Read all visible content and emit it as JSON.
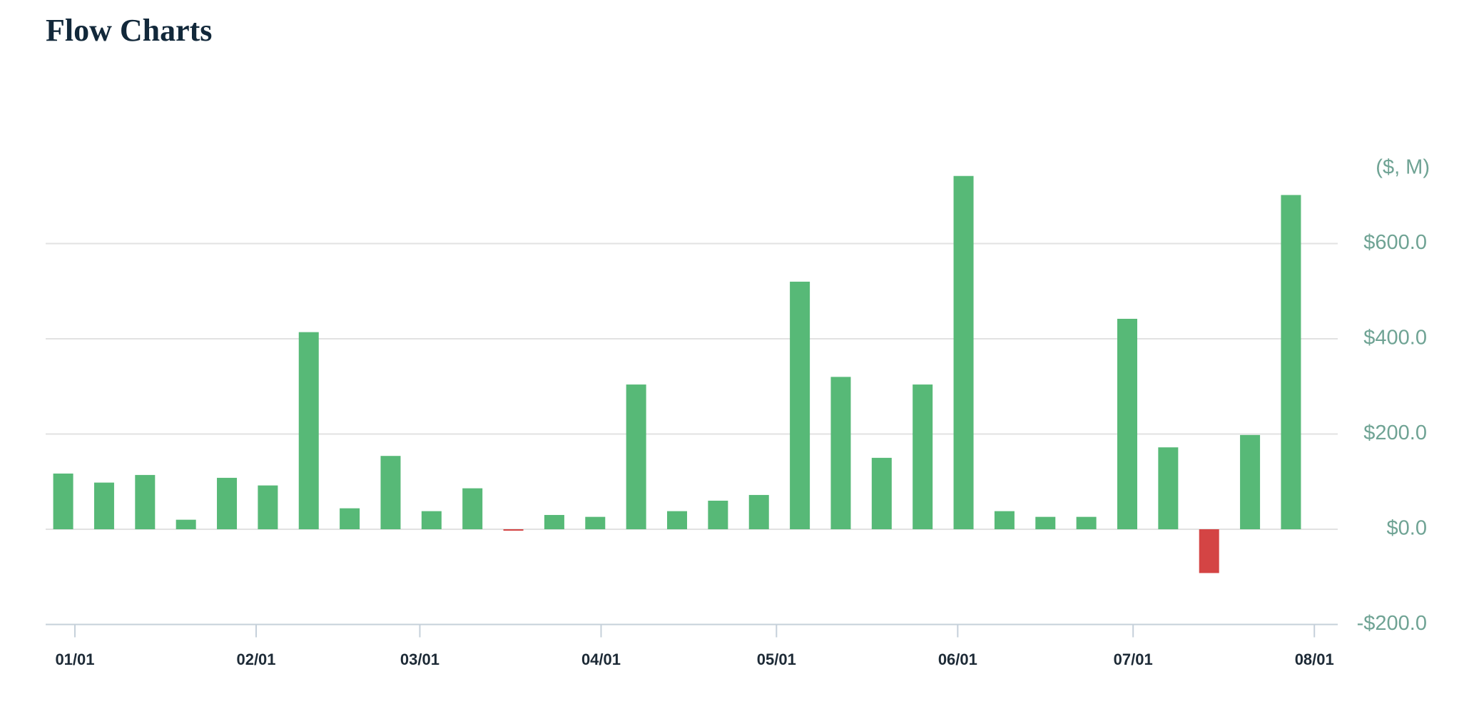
{
  "chart_data": {
    "type": "bar",
    "title": "Flow Charts",
    "unit_label": "($, M)",
    "x": [
      -2,
      5,
      12,
      19,
      26,
      33,
      40,
      47,
      54,
      61,
      68,
      75,
      82,
      89,
      96,
      103,
      110,
      117,
      124,
      131,
      138,
      145,
      152,
      159,
      166,
      173,
      180,
      187,
      194,
      201,
      208
    ],
    "values": [
      117,
      98,
      114,
      20,
      108,
      92,
      414,
      44,
      154,
      38,
      86,
      -3,
      30,
      26,
      304,
      38,
      60,
      72,
      520,
      320,
      150,
      304,
      742,
      38,
      26,
      26,
      442,
      172,
      -92,
      198,
      702
    ],
    "colors": {
      "positive": "#57b977",
      "negative": "#d44444"
    },
    "xlim": [
      -5,
      216
    ],
    "xticks": [
      {
        "value": 0,
        "label": "01/01"
      },
      {
        "value": 31,
        "label": "02/01"
      },
      {
        "value": 59,
        "label": "03/01"
      },
      {
        "value": 90,
        "label": "04/01"
      },
      {
        "value": 120,
        "label": "05/01"
      },
      {
        "value": 151,
        "label": "06/01"
      },
      {
        "value": 181,
        "label": "07/01"
      },
      {
        "value": 212,
        "label": "08/01"
      }
    ],
    "ylim": [
      -200,
      800
    ],
    "yticks": [
      {
        "value": -200,
        "label": "-$200.0"
      },
      {
        "value": 0,
        "label": "$0.0"
      },
      {
        "value": 200,
        "label": "$200.0"
      },
      {
        "value": 400,
        "label": "$400.0"
      },
      {
        "value": 600,
        "label": "$600.0"
      }
    ],
    "grid": true
  }
}
